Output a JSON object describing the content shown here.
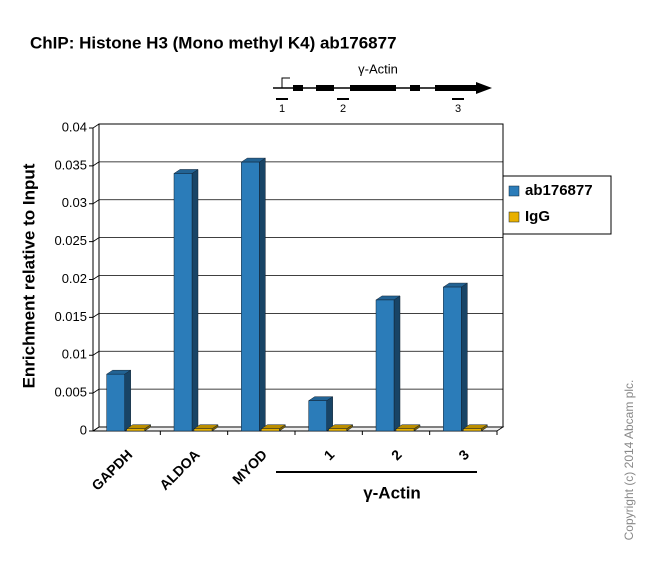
{
  "chart_data": {
    "type": "bar",
    "title": "ChIP: Histone H3 (Mono methyl K4) ab176877",
    "y_label": "Enrichment relative to Input",
    "categories": [
      "GAPDH",
      "ALDOA",
      "MYOD",
      "1",
      "2",
      "3"
    ],
    "group_label": "γ-Actin",
    "series": [
      {
        "name": "ab176877",
        "color": "#2b7cb9",
        "values": [
          0.0075,
          0.034,
          0.0355,
          0.004,
          0.0173,
          0.019
        ]
      },
      {
        "name": "IgG",
        "color": "#e8b000",
        "values": [
          0.0003,
          0.0003,
          0.0003,
          0.0003,
          0.0003,
          0.0003
        ]
      }
    ],
    "ylim": [
      0,
      0.04
    ],
    "yticks": [
      0,
      0.005,
      0.01,
      0.015,
      0.02,
      0.025,
      0.03,
      0.035,
      0.04
    ],
    "grid": true,
    "legend": "right",
    "gene_diagram": {
      "label": "γ-Actin",
      "regions": [
        "1",
        "2",
        "3"
      ]
    },
    "copyright": "Copyright (c) 2014 Abcam plc."
  }
}
